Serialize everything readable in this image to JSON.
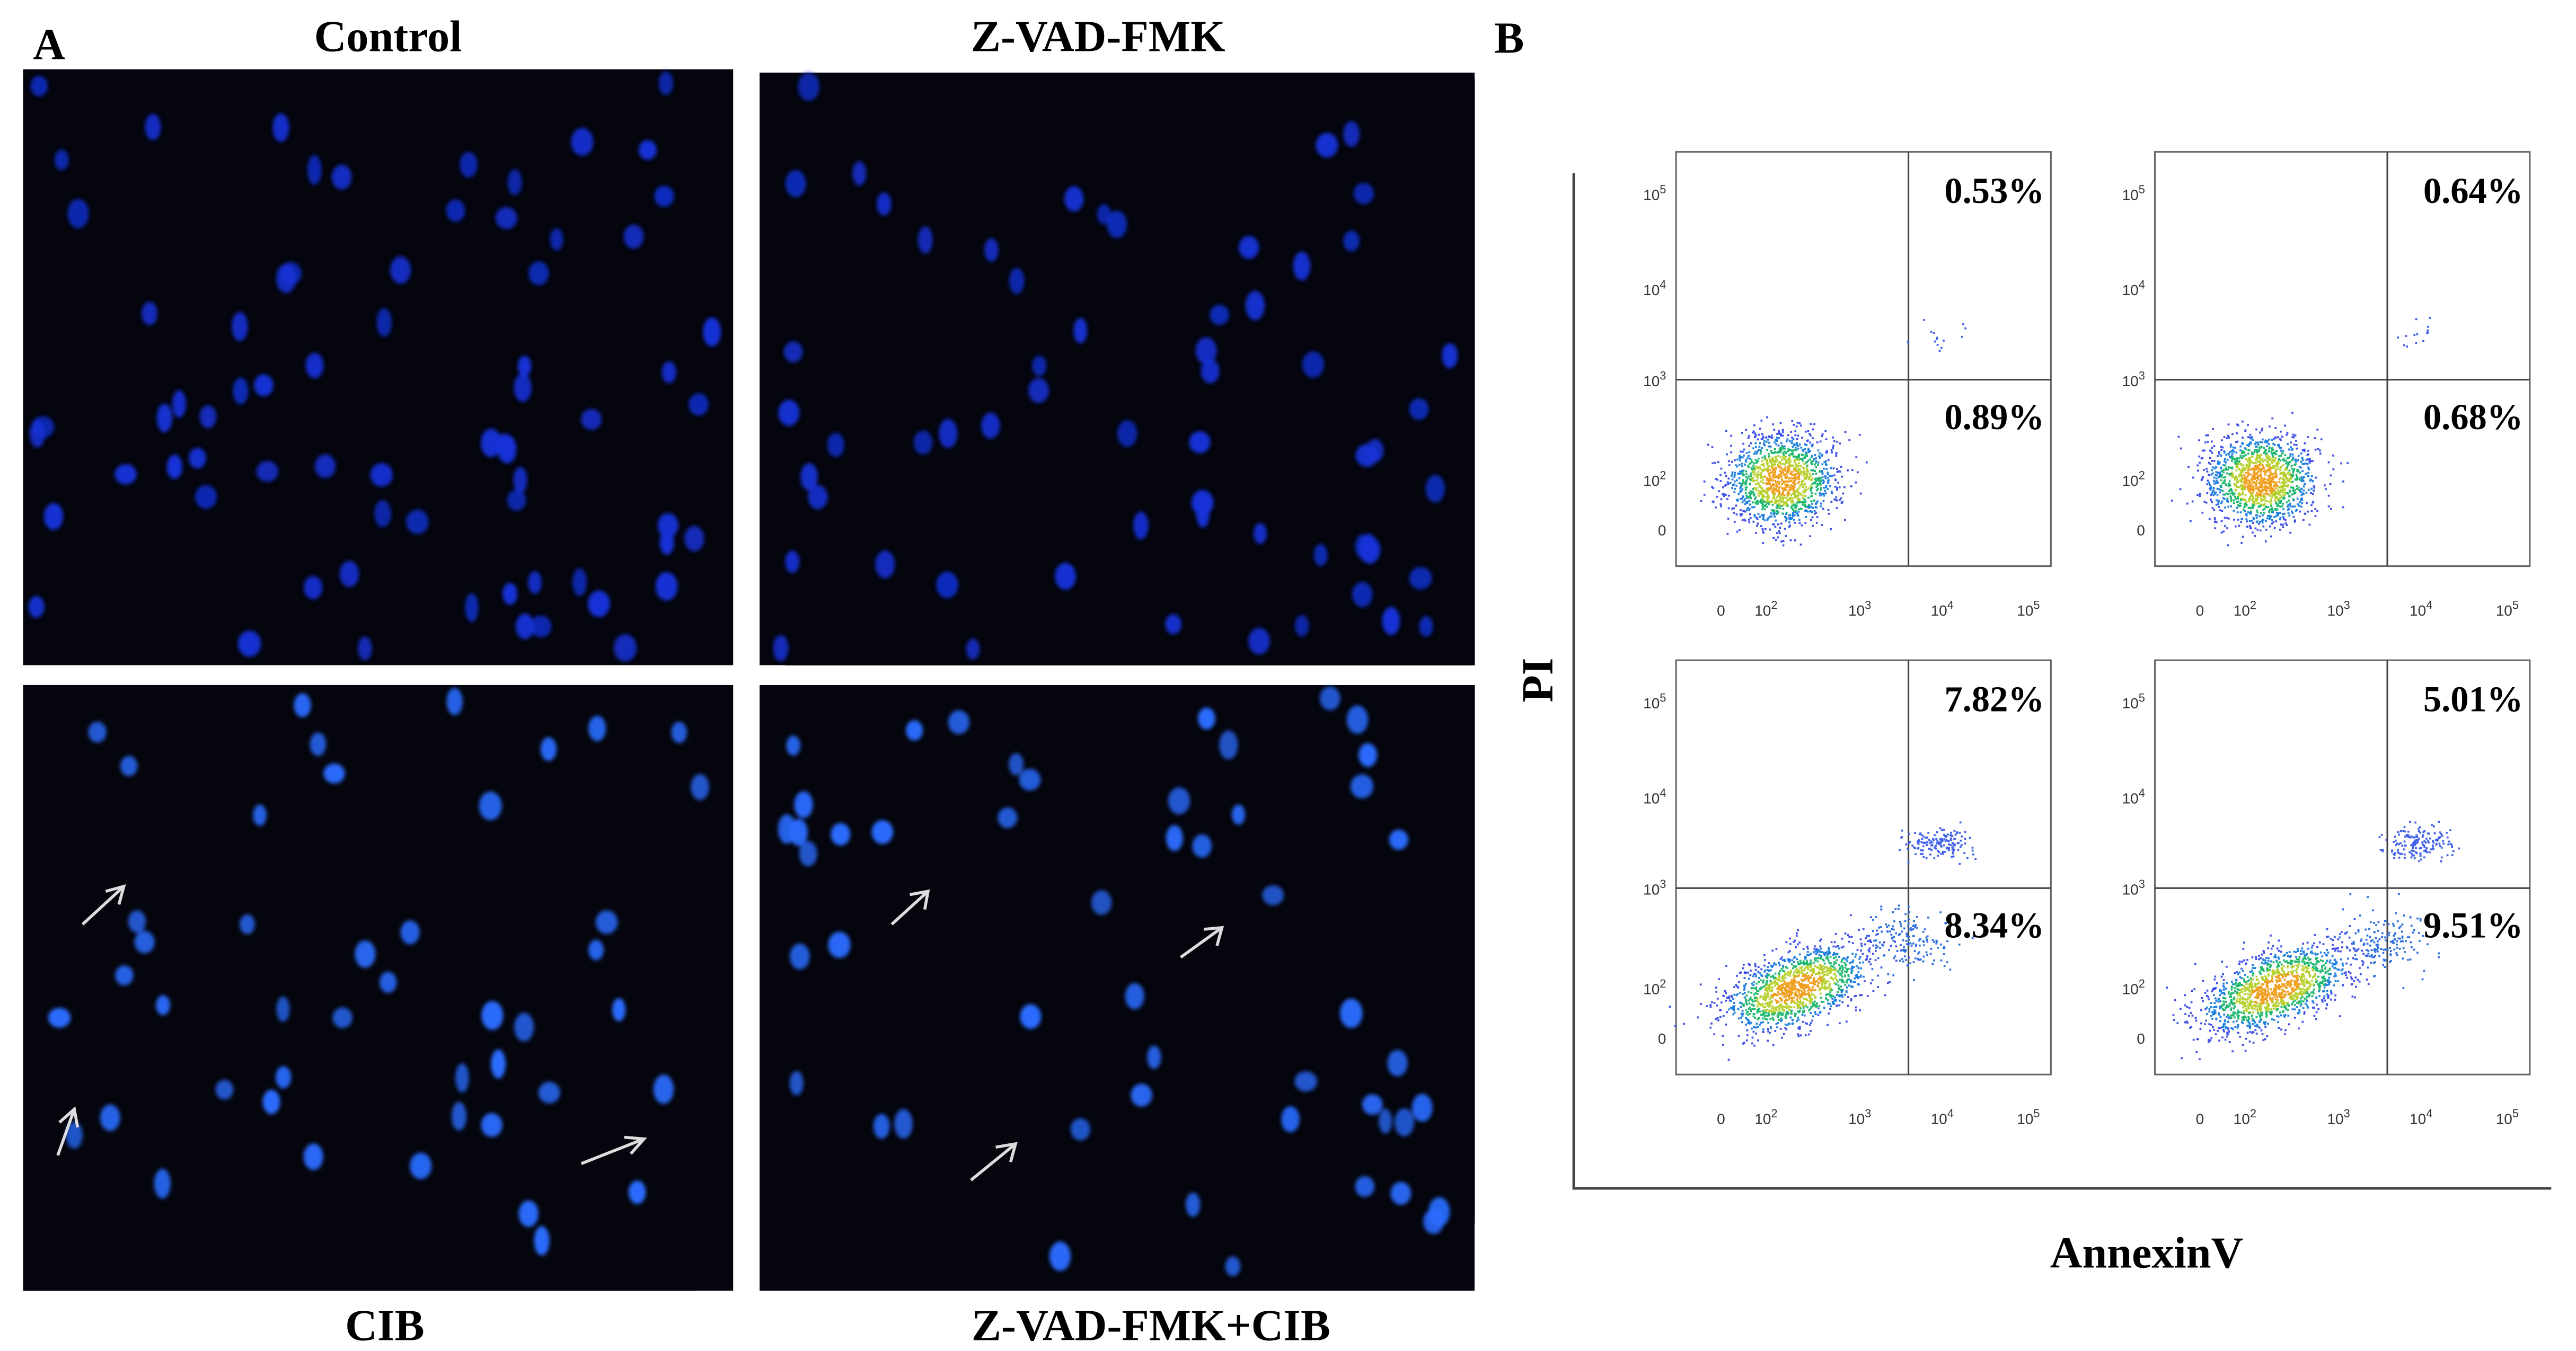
{
  "panel_a": {
    "label": "A",
    "images": [
      {
        "title": "Control"
      },
      {
        "title": "Z-VAD-FMK"
      },
      {
        "title": "CIB"
      },
      {
        "title": "Z-VAD-FMK+CIB"
      }
    ]
  },
  "panel_b": {
    "label": "B",
    "y_label": "PI",
    "x_label": "AnnexinV",
    "y_ticks": [
      {
        "base": "10",
        "exp": "5"
      },
      {
        "base": "10",
        "exp": "4"
      },
      {
        "base": "10",
        "exp": "3"
      },
      {
        "base": "10",
        "exp": "2"
      },
      {
        "base": "0",
        "exp": ""
      }
    ],
    "x_ticks": [
      {
        "base": "0",
        "exp": ""
      },
      {
        "base": "10",
        "exp": "2"
      },
      {
        "base": "10",
        "exp": "3"
      },
      {
        "base": "10",
        "exp": "4"
      },
      {
        "base": "10",
        "exp": "5"
      }
    ],
    "plots": [
      {
        "upper_right": "0.53%",
        "lower_right": "0.89%"
      },
      {
        "upper_right": "0.64%",
        "lower_right": "0.68%"
      },
      {
        "upper_right": "7.82%",
        "lower_right": "8.34%"
      },
      {
        "upper_right": "5.01%",
        "lower_right": "9.51%"
      }
    ]
  }
}
